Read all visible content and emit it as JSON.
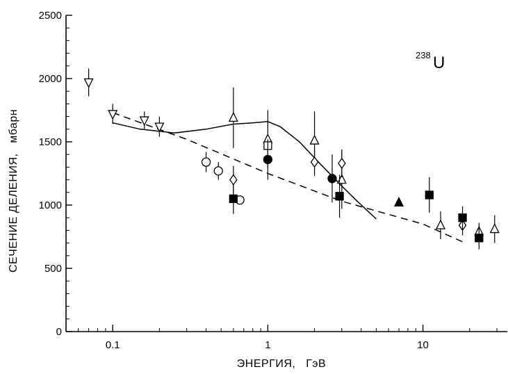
{
  "chart_data": {
    "type": "scatter",
    "xlabel": "ЭНЕРГИЯ,   ГэВ",
    "ylabel": "СЕЧЕНИЕ ДЕЛЕНИЯ,   мбарн",
    "annotation": {
      "superscript": "238",
      "text": "U"
    },
    "x_scale": "log",
    "xlim": [
      0.05,
      35
    ],
    "ylim": [
      0,
      2500
    ],
    "x_tick_labels": [
      {
        "value": 0.1,
        "label": "0.1"
      },
      {
        "value": 1,
        "label": "1"
      },
      {
        "value": 10,
        "label": "10"
      }
    ],
    "y_tick_labels": [
      {
        "value": 0,
        "label": "0"
      },
      {
        "value": 500,
        "label": "500"
      },
      {
        "value": 1000,
        "label": "1000"
      },
      {
        "value": 1500,
        "label": "1500"
      },
      {
        "value": 2000,
        "label": "2000"
      },
      {
        "value": 2500,
        "label": "2500"
      }
    ],
    "grid": false,
    "series": [
      {
        "marker": "triangle-down-open",
        "points": [
          {
            "x": 0.07,
            "y": 1970,
            "err": 110
          },
          {
            "x": 0.1,
            "y": 1720,
            "err": 80
          },
          {
            "x": 0.16,
            "y": 1670,
            "err": 70
          },
          {
            "x": 0.2,
            "y": 1620,
            "err": 80
          }
        ]
      },
      {
        "marker": "circle-open",
        "points": [
          {
            "x": 0.4,
            "y": 1340,
            "err": 80
          },
          {
            "x": 0.48,
            "y": 1270,
            "err": 70
          },
          {
            "x": 0.66,
            "y": 1040,
            "err": 0
          }
        ]
      },
      {
        "marker": "triangle-up-open",
        "points": [
          {
            "x": 0.6,
            "y": 1690,
            "err": 240
          },
          {
            "x": 1,
            "y": 1520,
            "err": 230
          },
          {
            "x": 2,
            "y": 1510,
            "err": 230
          },
          {
            "x": 3,
            "y": 1200,
            "err": 230
          },
          {
            "x": 13,
            "y": 840,
            "err": 110
          },
          {
            "x": 23,
            "y": 790,
            "err": 70
          },
          {
            "x": 29,
            "y": 810,
            "err": 110
          }
        ]
      },
      {
        "marker": "diamond-open",
        "points": [
          {
            "x": 0.6,
            "y": 1200,
            "err": 110
          },
          {
            "x": 2,
            "y": 1340,
            "err": 110
          },
          {
            "x": 3,
            "y": 1330,
            "err": 110
          },
          {
            "x": 18,
            "y": 840,
            "err": 80
          }
        ]
      },
      {
        "marker": "square-open",
        "points": [
          {
            "x": 1,
            "y": 1470,
            "err": 0
          }
        ]
      },
      {
        "marker": "circle-filled",
        "points": [
          {
            "x": 1,
            "y": 1360,
            "err": 160
          },
          {
            "x": 2.6,
            "y": 1210,
            "err": 190
          }
        ]
      },
      {
        "marker": "square-filled",
        "points": [
          {
            "x": 0.6,
            "y": 1050,
            "err": 120
          },
          {
            "x": 2.9,
            "y": 1070,
            "err": 170
          },
          {
            "x": 11,
            "y": 1080,
            "err": 140
          },
          {
            "x": 18,
            "y": 900,
            "err": 90
          },
          {
            "x": 23,
            "y": 740,
            "err": 90
          }
        ]
      },
      {
        "marker": "triangle-up-filled",
        "points": [
          {
            "x": 7,
            "y": 1020,
            "err": 0
          }
        ]
      }
    ],
    "curves": [
      {
        "style": "solid",
        "points": [
          [
            0.1,
            1650
          ],
          [
            0.15,
            1600
          ],
          [
            0.25,
            1570
          ],
          [
            0.4,
            1600
          ],
          [
            0.6,
            1640
          ],
          [
            0.8,
            1650
          ],
          [
            1.0,
            1660
          ],
          [
            1.2,
            1620
          ],
          [
            1.6,
            1500
          ],
          [
            2.2,
            1320
          ],
          [
            3.0,
            1150
          ],
          [
            3.7,
            1040
          ],
          [
            5.0,
            890
          ]
        ]
      },
      {
        "style": "dashed",
        "points": [
          [
            0.1,
            1730
          ],
          [
            0.3,
            1520
          ],
          [
            1.0,
            1250
          ],
          [
            3.0,
            1030
          ],
          [
            10.0,
            850
          ],
          [
            18.0,
            710
          ]
        ]
      }
    ]
  }
}
